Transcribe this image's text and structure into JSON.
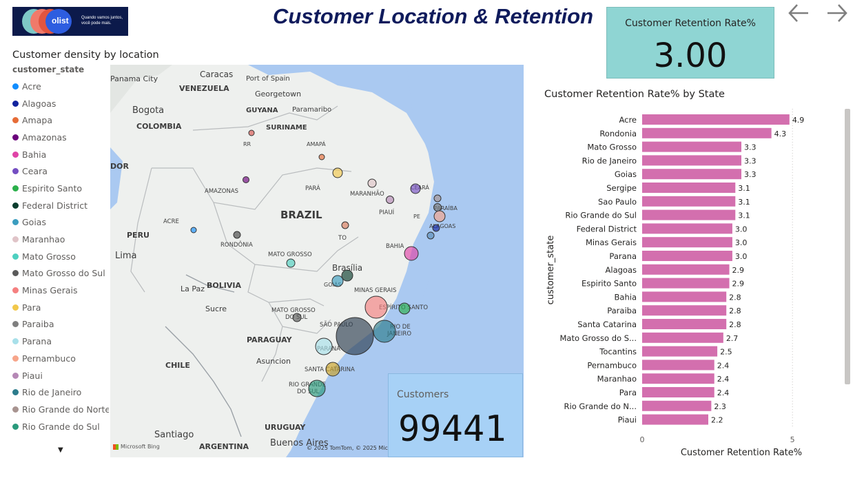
{
  "header": {
    "title": "Customer Location & Retention",
    "logo_brand": "olist",
    "logo_tagline": "Quando vamos juntos, você pode mais."
  },
  "kpi_retention": {
    "label": "Customer Retention Rate%",
    "value": "3.00"
  },
  "kpi_customers": {
    "label": "Customers",
    "value": "99441"
  },
  "map_section": {
    "title": "Customer density by location",
    "legend_title": "customer_state",
    "legend": [
      {
        "name": "Acre",
        "color": "#118dff"
      },
      {
        "name": "Alagoas",
        "color": "#12239e"
      },
      {
        "name": "Amapa",
        "color": "#e66c37"
      },
      {
        "name": "Amazonas",
        "color": "#6b007b"
      },
      {
        "name": "Bahia",
        "color": "#e044a7"
      },
      {
        "name": "Ceara",
        "color": "#744ec2"
      },
      {
        "name": "Espirito Santo",
        "color": "#2bb04b"
      },
      {
        "name": "Federal District",
        "color": "#0a3d2e"
      },
      {
        "name": "Goias",
        "color": "#3b9dbf"
      },
      {
        "name": "Maranhao",
        "color": "#e0c4c8"
      },
      {
        "name": "Mato Grosso",
        "color": "#4ed0c0"
      },
      {
        "name": "Mato Grosso do Sul",
        "color": "#5a5a5a"
      },
      {
        "name": "Minas Gerais",
        "color": "#f58080"
      },
      {
        "name": "Para",
        "color": "#f2c84b"
      },
      {
        "name": "Paraiba",
        "color": "#7f7f7f"
      },
      {
        "name": "Parana",
        "color": "#a8e0ea"
      },
      {
        "name": "Pernambuco",
        "color": "#f7a58a"
      },
      {
        "name": "Piaui",
        "color": "#b588b5"
      },
      {
        "name": "Rio de Janeiro",
        "color": "#2c7c8c"
      },
      {
        "name": "Rio Grande do Norte",
        "color": "#a89490"
      },
      {
        "name": "Rio Grande do Sul",
        "color": "#2a9a7c"
      }
    ],
    "map_labels": {
      "caracas": "Caracas",
      "port_of_spain": "Port of Spain",
      "panama_city": "Panama City",
      "venezuela": "VENEZUELA",
      "georgetown": "Georgetown",
      "bogota": "Bogota",
      "guyana": "GUYANA",
      "paramaribo": "Paramaribo",
      "colombia": "COLOMBIA",
      "suriname": "SURINAME",
      "rr": "RR",
      "amapa": "AMAPÁ",
      "dor": "DOR",
      "amazonas": "AMAZONAS",
      "para": "PARÁ",
      "maranhao": "MARANHÃO",
      "ceara": "CEARÁ",
      "paraiba": "PARAÍBA",
      "brazil": "BRAZIL",
      "acre": "ACRE",
      "piaui": "PIAUÍ",
      "pe": "PE",
      "alagoas": "ALAGOAS",
      "peru": "PERU",
      "rondonia": "RONDÔNIA",
      "to": "TO",
      "bahia": "BAHIA",
      "lima": "Lima",
      "mato_grosso": "MATO GROSSO",
      "brasilia": "Brasília",
      "bolivia": "BOLIVIA",
      "la_paz": "La Paz",
      "goias": "GOIÁS",
      "minas_gerais": "MINAS GERAIS",
      "sucre": "Sucre",
      "mato_grosso_do_sul": "MATO GROSSO",
      "do_sul": "DO SUL",
      "espirito_santo": "ESPÍRITO SANTO",
      "sao_paulo": "SÃO PAULO",
      "rio": "RIO DE",
      "janeiro": "JANEIRO",
      "paraguay": "PARAGUAY",
      "parana": "PARANÁ",
      "asuncion": "Asuncion",
      "chile": "CHILE",
      "santa_catarina": "SANTA CATARINA",
      "rio_grande": "RIO GRANDE",
      "do_sul2": "DO SUL",
      "uruguay": "URUGUAY",
      "santiago": "Santiago",
      "buenos_aires": "Buenos Aires",
      "argentina": "ARGENTINA"
    },
    "credit": "© 2025 TomTom, © 2025 Mic",
    "bing": "Microsoft Bing",
    "bubbles": [
      {
        "state": "Acre",
        "color": "#118dff"
      },
      {
        "state": "Alagoas",
        "color": "#12239e"
      },
      {
        "state": "Amapa",
        "color": "#e66c37"
      },
      {
        "state": "Amazonas",
        "color": "#6b007b"
      },
      {
        "state": "Bahia",
        "color": "#e044a7"
      },
      {
        "state": "Ceara",
        "color": "#744ec2"
      },
      {
        "state": "Espirito Santo",
        "color": "#2bb04b"
      },
      {
        "state": "Federal District",
        "color": "#0a3d2e"
      },
      {
        "state": "Goias",
        "color": "#3b9dbf"
      },
      {
        "state": "Maranhao",
        "color": "#e0c4c8"
      },
      {
        "state": "Mato Grosso",
        "color": "#4ed0c0"
      },
      {
        "state": "Mato Grosso do Sul",
        "color": "#5a5a5a"
      },
      {
        "state": "Minas Gerais",
        "color": "#f58080"
      },
      {
        "state": "Para",
        "color": "#f2c84b"
      },
      {
        "state": "Paraiba",
        "color": "#7f7f7f"
      },
      {
        "state": "Parana",
        "color": "#a8e0ea"
      },
      {
        "state": "Pernambuco",
        "color": "#f7a58a"
      },
      {
        "state": "Piaui",
        "color": "#b588b5"
      },
      {
        "state": "Rio de Janeiro",
        "color": "#2c7c8c"
      },
      {
        "state": "Rio Grande do Norte",
        "color": "#a89490"
      },
      {
        "state": "Rio Grande do Sul",
        "color": "#2a9a7c"
      },
      {
        "state": "Sao Paulo",
        "color": "#2d3e50"
      },
      {
        "state": "Santa Catarina",
        "color": "#c9a227"
      },
      {
        "state": "Sergipe",
        "color": "#5b8db8"
      },
      {
        "state": "Rondonia",
        "color": "#444444"
      },
      {
        "state": "Roraima",
        "color": "#d9534f"
      },
      {
        "state": "Tocantins",
        "color": "#d97a5a"
      }
    ]
  },
  "chart_data": {
    "type": "bar",
    "orientation": "horizontal",
    "title": "Customer Retention Rate% by State",
    "xlabel": "Customer Retention Rate%",
    "ylabel": "customer_state",
    "categories": [
      "Acre",
      "Rondonia",
      "Mato Grosso",
      "Rio de Janeiro",
      "Goias",
      "Sergipe",
      "Sao Paulo",
      "Rio Grande do Sul",
      "Federal District",
      "Minas Gerais",
      "Parana",
      "Alagoas",
      "Espirito Santo",
      "Bahia",
      "Paraiba",
      "Santa Catarina",
      "Mato Grosso do S...",
      "Tocantins",
      "Pernambuco",
      "Maranhao",
      "Para",
      "Rio Grande do N...",
      "Piaui"
    ],
    "values": [
      4.9,
      4.3,
      3.3,
      3.3,
      3.3,
      3.1,
      3.1,
      3.1,
      3.0,
      3.0,
      3.0,
      2.9,
      2.9,
      2.8,
      2.8,
      2.8,
      2.7,
      2.5,
      2.4,
      2.4,
      2.4,
      2.3,
      2.2
    ],
    "value_labels": [
      "4.9",
      "4.3",
      "3.3",
      "3.3",
      "3.3",
      "3.1",
      "3.1",
      "3.1",
      "3.0",
      "3.0",
      "3.0",
      "2.9",
      "2.9",
      "2.8",
      "2.8",
      "2.8",
      "2.7",
      "2.5",
      "2.4",
      "2.4",
      "2.4",
      "2.3",
      "2.2"
    ],
    "xticks": [
      "0",
      "5"
    ],
    "xlim": [
      0,
      5.5
    ],
    "bar_color": "#d36fae"
  }
}
